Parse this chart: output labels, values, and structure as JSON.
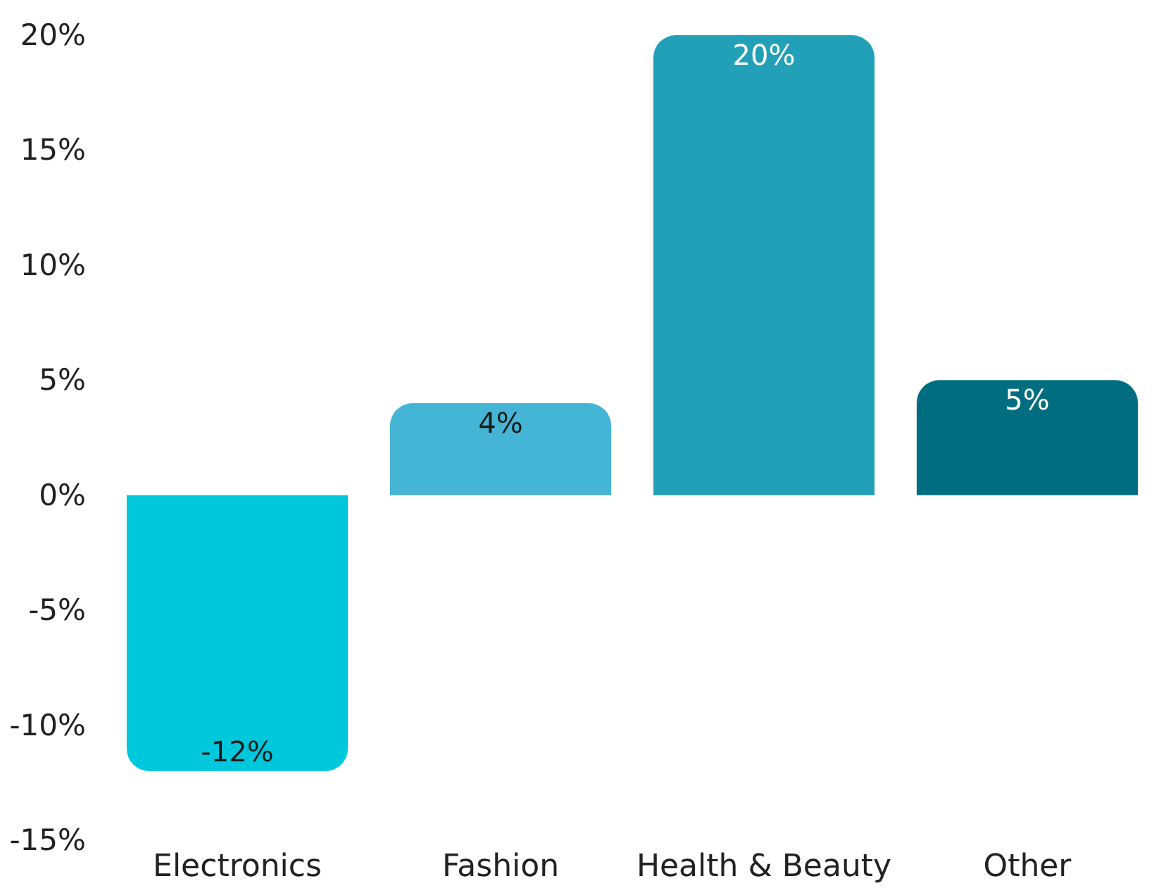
{
  "chart_data": {
    "type": "bar",
    "categories": [
      "Electronics",
      "Fashion",
      "Health & Beauty",
      "Other"
    ],
    "values": [
      -12,
      4,
      20,
      5
    ],
    "colors": [
      "#00c8dc",
      "#45b5d5",
      "#22a0b8",
      "#006e80"
    ],
    "value_labels": [
      "-12%",
      "4%",
      "20%",
      "5%"
    ],
    "ylim": [
      -15,
      20
    ],
    "yticks": [
      {
        "value": -15,
        "label": "-15%"
      },
      {
        "value": -10,
        "label": "-10%"
      },
      {
        "value": -5,
        "label": "-5%"
      },
      {
        "value": 0,
        "label": "0%"
      },
      {
        "value": 5,
        "label": "5%"
      },
      {
        "value": 10,
        "label": "10%"
      },
      {
        "value": 15,
        "label": "15%"
      },
      {
        "value": 20,
        "label": "20%"
      }
    ],
    "grid": false
  }
}
